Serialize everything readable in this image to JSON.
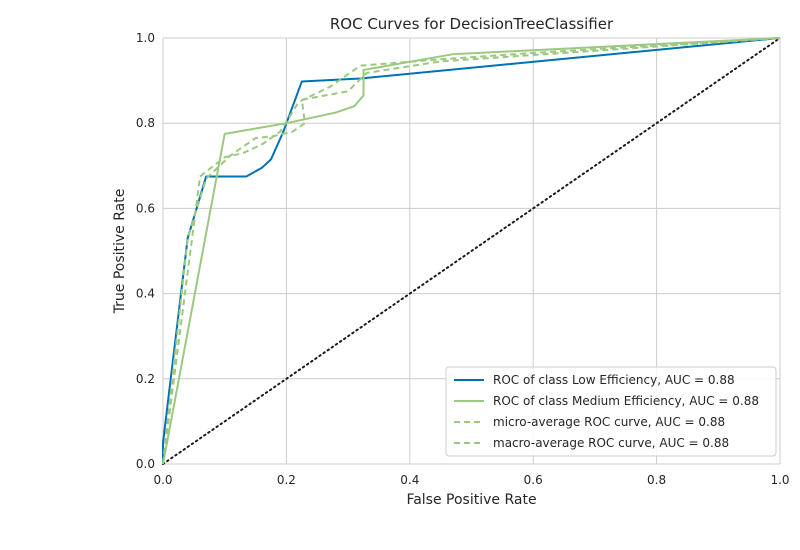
{
  "chart_data": {
    "type": "line",
    "title": "ROC Curves for DecisionTreeClassifier",
    "xlabel": "False Positive Rate",
    "ylabel": "True Positive Rate",
    "xlim": [
      0,
      1
    ],
    "ylim": [
      0,
      1
    ],
    "xticks": [
      "0.0",
      "0.2",
      "0.4",
      "0.6",
      "0.8",
      "1.0"
    ],
    "yticks": [
      "0.0",
      "0.2",
      "0.4",
      "0.6",
      "0.8",
      "1.0"
    ],
    "grid": true,
    "legend_location": "lower-right",
    "series": [
      {
        "name": "ROC of class Low Efficiency, AUC = 0.88",
        "color": "#0072B2",
        "style": "solid",
        "points": [
          [
            0,
            0
          ],
          [
            0,
            0.05
          ],
          [
            0.04,
            0.53
          ],
          [
            0.07,
            0.675
          ],
          [
            0.135,
            0.675
          ],
          [
            0.16,
            0.695
          ],
          [
            0.175,
            0.715
          ],
          [
            0.195,
            0.78
          ],
          [
            0.225,
            0.898
          ],
          [
            0.32,
            0.905
          ],
          [
            1,
            1
          ]
        ]
      },
      {
        "name": "ROC of class Medium Efficiency, AUC = 0.88",
        "color": "#9BC97F",
        "style": "solid",
        "points": [
          [
            0,
            0
          ],
          [
            0.1,
            0.775
          ],
          [
            0.2,
            0.8
          ],
          [
            0.28,
            0.825
          ],
          [
            0.31,
            0.84
          ],
          [
            0.325,
            0.865
          ],
          [
            0.325,
            0.925
          ],
          [
            0.47,
            0.962
          ],
          [
            1,
            1
          ]
        ]
      },
      {
        "name": "micro-average ROC curve, AUC = 0.88",
        "color": "#9BC97F",
        "style": "dashed",
        "points": [
          [
            0,
            0
          ],
          [
            0.06,
            0.675
          ],
          [
            0.1,
            0.72
          ],
          [
            0.13,
            0.73
          ],
          [
            0.16,
            0.75
          ],
          [
            0.19,
            0.78
          ],
          [
            0.22,
            0.85
          ],
          [
            0.27,
            0.885
          ],
          [
            0.32,
            0.935
          ],
          [
            0.45,
            0.95
          ],
          [
            0.6,
            0.965
          ],
          [
            1,
            1
          ]
        ]
      },
      {
        "name": "macro-average ROC curve, AUC = 0.88",
        "color": "#9BC97F",
        "style": "dashed",
        "points": [
          [
            0,
            0
          ],
          [
            0.04,
            0.53
          ],
          [
            0.07,
            0.67
          ],
          [
            0.11,
            0.725
          ],
          [
            0.15,
            0.765
          ],
          [
            0.18,
            0.77
          ],
          [
            0.21,
            0.78
          ],
          [
            0.23,
            0.8
          ],
          [
            0.225,
            0.855
          ],
          [
            0.3,
            0.875
          ],
          [
            0.33,
            0.918
          ],
          [
            0.45,
            0.945
          ],
          [
            0.6,
            0.96
          ],
          [
            1,
            1
          ]
        ]
      }
    ],
    "reference_line": {
      "name": "chance diagonal",
      "color": "#1a1a1a",
      "style": "dotted",
      "points": [
        [
          0,
          0
        ],
        [
          1,
          1
        ]
      ]
    }
  }
}
